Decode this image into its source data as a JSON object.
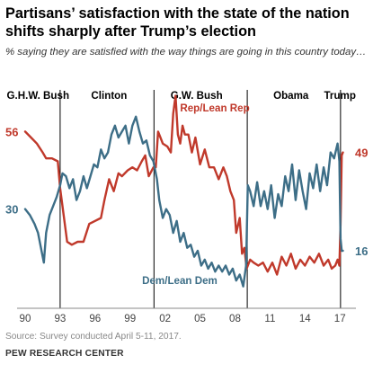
{
  "title": "Partisans’ satisfaction with the state of the nation shifts sharply after Trump’s election",
  "subtitle": "% saying they are satisfied with the way things are going in this country today…",
  "source": "Source: Survey conducted April 5-11, 2017.",
  "org": "PEW RESEARCH CENTER",
  "colors": {
    "rep": "#c0392b",
    "dem": "#3d6e87",
    "axis": "#888888",
    "divider": "#000000"
  },
  "chart_data": {
    "type": "line",
    "xlim": [
      1990,
      2017.6
    ],
    "ylim": [
      0,
      70
    ],
    "x_ticks": [
      {
        "value": 1990,
        "label": "90"
      },
      {
        "value": 1993,
        "label": "93"
      },
      {
        "value": 1996,
        "label": "96"
      },
      {
        "value": 1999,
        "label": "99"
      },
      {
        "value": 2002,
        "label": "02"
      },
      {
        "value": 2005,
        "label": "05"
      },
      {
        "value": 2008,
        "label": "08"
      },
      {
        "value": 2011,
        "label": "11"
      },
      {
        "value": 2014,
        "label": "14"
      },
      {
        "value": 2017,
        "label": "17"
      }
    ],
    "eras": [
      {
        "label": "G.H.W. Bush",
        "center": 1991.1
      },
      {
        "label": "Clinton",
        "center": 1997.2
      },
      {
        "label": "G.W. Bush",
        "center": 2004.7
      },
      {
        "label": "Obama",
        "center": 2012.8
      },
      {
        "label": "Trump",
        "center": 2017.0
      }
    ],
    "dividers": [
      1993.0,
      2001.05,
      2009.05,
      2017.05
    ],
    "series": [
      {
        "name": "Rep/Lean Rep",
        "color": "#c0392b",
        "start_label": "56",
        "end_label": "49",
        "points": [
          [
            1990.0,
            56
          ],
          [
            1990.5,
            54
          ],
          [
            1991.0,
            52
          ],
          [
            1991.5,
            49
          ],
          [
            1991.8,
            47
          ],
          [
            1992.3,
            47
          ],
          [
            1992.8,
            46
          ],
          [
            1993.0,
            37
          ],
          [
            1993.3,
            28
          ],
          [
            1993.6,
            19
          ],
          [
            1994.0,
            18
          ],
          [
            1994.5,
            19
          ],
          [
            1995.0,
            19
          ],
          [
            1995.5,
            25
          ],
          [
            1996.0,
            26
          ],
          [
            1996.5,
            27
          ],
          [
            1996.8,
            33
          ],
          [
            1997.2,
            40
          ],
          [
            1997.6,
            36
          ],
          [
            1998.0,
            42
          ],
          [
            1998.3,
            41
          ],
          [
            1998.8,
            43
          ],
          [
            1999.2,
            44
          ],
          [
            1999.6,
            43
          ],
          [
            2000.0,
            46
          ],
          [
            2000.3,
            48
          ],
          [
            2000.6,
            41
          ],
          [
            2001.0,
            44
          ],
          [
            2001.2,
            44
          ],
          [
            2001.4,
            56
          ],
          [
            2001.6,
            54
          ],
          [
            2001.8,
            52
          ],
          [
            2002.2,
            51
          ],
          [
            2002.5,
            49
          ],
          [
            2002.7,
            62
          ],
          [
            2002.9,
            68
          ],
          [
            2003.1,
            55
          ],
          [
            2003.3,
            52
          ],
          [
            2003.5,
            58
          ],
          [
            2003.7,
            55
          ],
          [
            2004.0,
            55
          ],
          [
            2004.3,
            49
          ],
          [
            2004.6,
            54
          ],
          [
            2005.0,
            45
          ],
          [
            2005.4,
            50
          ],
          [
            2005.8,
            44
          ],
          [
            2006.2,
            44
          ],
          [
            2006.6,
            40
          ],
          [
            2007.0,
            44
          ],
          [
            2007.3,
            41
          ],
          [
            2007.6,
            36
          ],
          [
            2007.9,
            33
          ],
          [
            2008.1,
            22
          ],
          [
            2008.4,
            27
          ],
          [
            2008.6,
            15
          ],
          [
            2008.8,
            17
          ],
          [
            2009.0,
            10
          ],
          [
            2009.3,
            13
          ],
          [
            2009.6,
            12
          ],
          [
            2010.0,
            11
          ],
          [
            2010.4,
            12
          ],
          [
            2010.8,
            9
          ],
          [
            2011.2,
            12
          ],
          [
            2011.6,
            8
          ],
          [
            2012.0,
            14
          ],
          [
            2012.4,
            11
          ],
          [
            2012.8,
            15
          ],
          [
            2013.2,
            10
          ],
          [
            2013.6,
            13
          ],
          [
            2014.0,
            11
          ],
          [
            2014.4,
            14
          ],
          [
            2014.8,
            12
          ],
          [
            2015.2,
            15
          ],
          [
            2015.6,
            11
          ],
          [
            2016.0,
            13
          ],
          [
            2016.3,
            10
          ],
          [
            2016.6,
            11
          ],
          [
            2016.8,
            13
          ],
          [
            2016.95,
            11
          ],
          [
            2017.05,
            25
          ],
          [
            2017.15,
            48
          ],
          [
            2017.25,
            49
          ]
        ]
      },
      {
        "name": "Dem/Lean Dem",
        "color": "#3d6e87",
        "start_label": "30",
        "end_label": "16",
        "points": [
          [
            1990.0,
            30
          ],
          [
            1990.4,
            28
          ],
          [
            1990.8,
            25
          ],
          [
            1991.1,
            22
          ],
          [
            1991.4,
            16
          ],
          [
            1991.6,
            12
          ],
          [
            1991.8,
            22
          ],
          [
            1992.1,
            28
          ],
          [
            1992.4,
            31
          ],
          [
            1992.7,
            34
          ],
          [
            1993.0,
            38
          ],
          [
            1993.2,
            42
          ],
          [
            1993.5,
            41
          ],
          [
            1993.8,
            37
          ],
          [
            1994.1,
            40
          ],
          [
            1994.4,
            33
          ],
          [
            1994.7,
            36
          ],
          [
            1995.0,
            41
          ],
          [
            1995.3,
            37
          ],
          [
            1995.6,
            41
          ],
          [
            1995.9,
            45
          ],
          [
            1996.2,
            44
          ],
          [
            1996.5,
            50
          ],
          [
            1996.8,
            47
          ],
          [
            1997.1,
            49
          ],
          [
            1997.4,
            55
          ],
          [
            1997.7,
            58
          ],
          [
            1998.0,
            54
          ],
          [
            1998.3,
            56
          ],
          [
            1998.6,
            58
          ],
          [
            1998.9,
            52
          ],
          [
            1999.2,
            58
          ],
          [
            1999.5,
            61
          ],
          [
            1999.8,
            56
          ],
          [
            2000.1,
            52
          ],
          [
            2000.4,
            53
          ],
          [
            2000.7,
            48
          ],
          [
            2001.0,
            46
          ],
          [
            2001.3,
            40
          ],
          [
            2001.5,
            33
          ],
          [
            2001.8,
            27
          ],
          [
            2002.1,
            30
          ],
          [
            2002.4,
            28
          ],
          [
            2002.7,
            22
          ],
          [
            2003.0,
            26
          ],
          [
            2003.3,
            19
          ],
          [
            2003.6,
            22
          ],
          [
            2003.9,
            17
          ],
          [
            2004.2,
            18
          ],
          [
            2004.5,
            14
          ],
          [
            2004.8,
            16
          ],
          [
            2005.1,
            11
          ],
          [
            2005.4,
            13
          ],
          [
            2005.7,
            10
          ],
          [
            2006.0,
            12
          ],
          [
            2006.3,
            9
          ],
          [
            2006.6,
            11
          ],
          [
            2006.9,
            9
          ],
          [
            2007.2,
            11
          ],
          [
            2007.5,
            8
          ],
          [
            2007.8,
            10
          ],
          [
            2008.1,
            6
          ],
          [
            2008.4,
            8
          ],
          [
            2008.7,
            4
          ],
          [
            2008.95,
            11
          ],
          [
            2009.1,
            38
          ],
          [
            2009.3,
            36
          ],
          [
            2009.6,
            31
          ],
          [
            2009.9,
            39
          ],
          [
            2010.2,
            31
          ],
          [
            2010.5,
            36
          ],
          [
            2010.8,
            30
          ],
          [
            2011.1,
            38
          ],
          [
            2011.4,
            27
          ],
          [
            2011.7,
            35
          ],
          [
            2012.0,
            31
          ],
          [
            2012.3,
            41
          ],
          [
            2012.6,
            36
          ],
          [
            2012.9,
            45
          ],
          [
            2013.2,
            33
          ],
          [
            2013.5,
            43
          ],
          [
            2013.8,
            36
          ],
          [
            2014.1,
            30
          ],
          [
            2014.4,
            42
          ],
          [
            2014.7,
            37
          ],
          [
            2015.0,
            45
          ],
          [
            2015.3,
            36
          ],
          [
            2015.6,
            44
          ],
          [
            2015.9,
            38
          ],
          [
            2016.2,
            49
          ],
          [
            2016.5,
            47
          ],
          [
            2016.8,
            52
          ],
          [
            2016.95,
            46
          ],
          [
            2017.05,
            20
          ],
          [
            2017.15,
            16
          ],
          [
            2017.25,
            16
          ]
        ]
      }
    ]
  }
}
